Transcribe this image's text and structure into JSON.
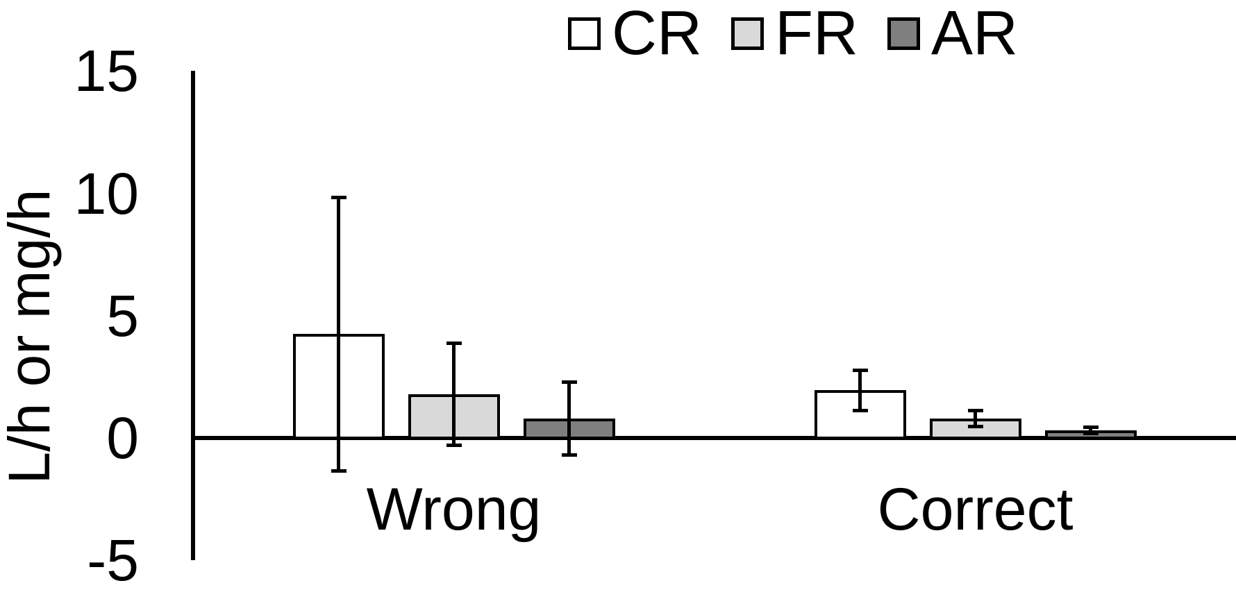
{
  "figure": {
    "background": "#ffffff",
    "axis_color": "#000000"
  },
  "chart_data": {
    "type": "bar",
    "title": "",
    "xlabel": "",
    "ylabel": "L/h or mg/h",
    "categories": [
      "Wrong",
      "Correct"
    ],
    "series": [
      {
        "name": "CR",
        "fill": "#ffffff",
        "border": "#000000",
        "values": [
          4.25,
          1.95
        ],
        "errors": [
          5.6,
          0.83
        ]
      },
      {
        "name": "FR",
        "fill": "#d9d9d9",
        "border": "#000000",
        "values": [
          1.8,
          0.8
        ],
        "errors": [
          2.1,
          0.34
        ]
      },
      {
        "name": "AR",
        "fill": "#7f7f7f",
        "border": "#000000",
        "values": [
          0.8,
          0.31
        ],
        "errors": [
          1.5,
          0.14
        ]
      }
    ],
    "ylim": [
      -5,
      15
    ],
    "yticks": [
      15,
      10,
      5,
      0,
      -5
    ],
    "grid": false,
    "legend_position": "top",
    "error_bars": true
  }
}
